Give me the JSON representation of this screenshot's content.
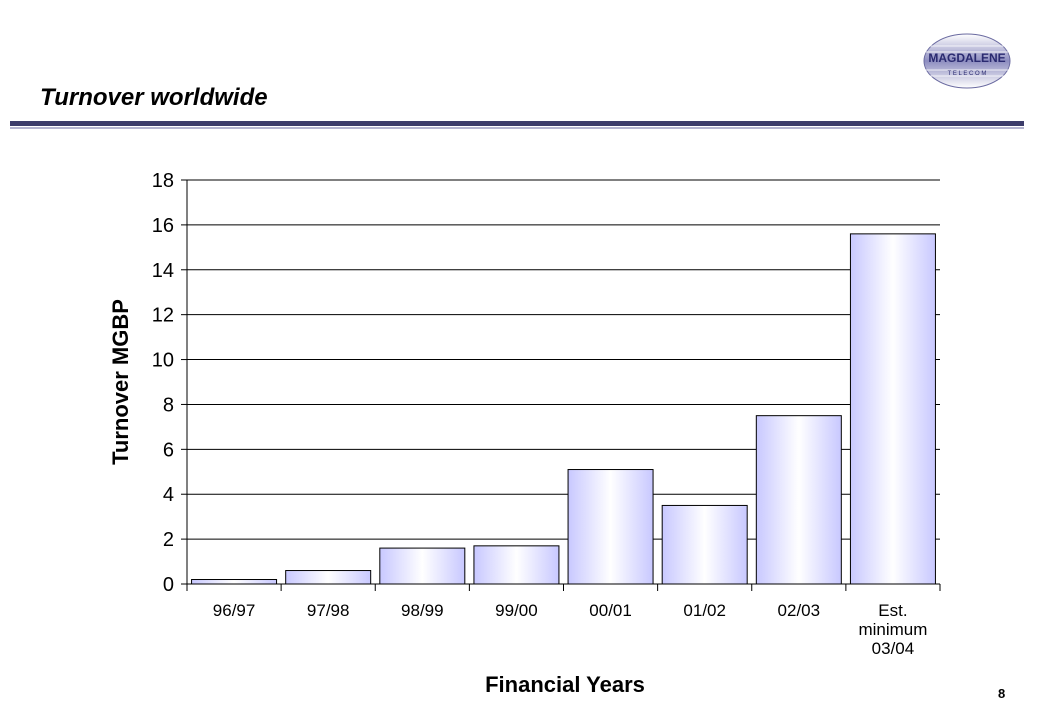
{
  "slide": {
    "title": "Turnover worldwide",
    "page_number": "8",
    "logo": {
      "name": "MAGDALENE",
      "sub": "T E L E C O M"
    }
  },
  "chart_data": {
    "type": "bar",
    "title": "",
    "xlabel": "Financial Years",
    "ylabel": "Turnover MGBP",
    "categories": [
      "96/97",
      "97/98",
      "98/99",
      "99/00",
      "00/01",
      "01/02",
      "02/03",
      "Est.\nminimum\n03/04"
    ],
    "values": [
      0.2,
      0.6,
      1.6,
      1.7,
      5.1,
      3.5,
      7.5,
      15.6
    ],
    "ylim": [
      0,
      18
    ],
    "yticks": [
      0,
      2,
      4,
      6,
      8,
      10,
      12,
      14,
      16,
      18
    ],
    "grid": true,
    "legend": "none",
    "colors": {
      "bar_edge": "#c8c8ff",
      "bar_center": "#ffffff",
      "bar_stroke": "#000000"
    }
  }
}
